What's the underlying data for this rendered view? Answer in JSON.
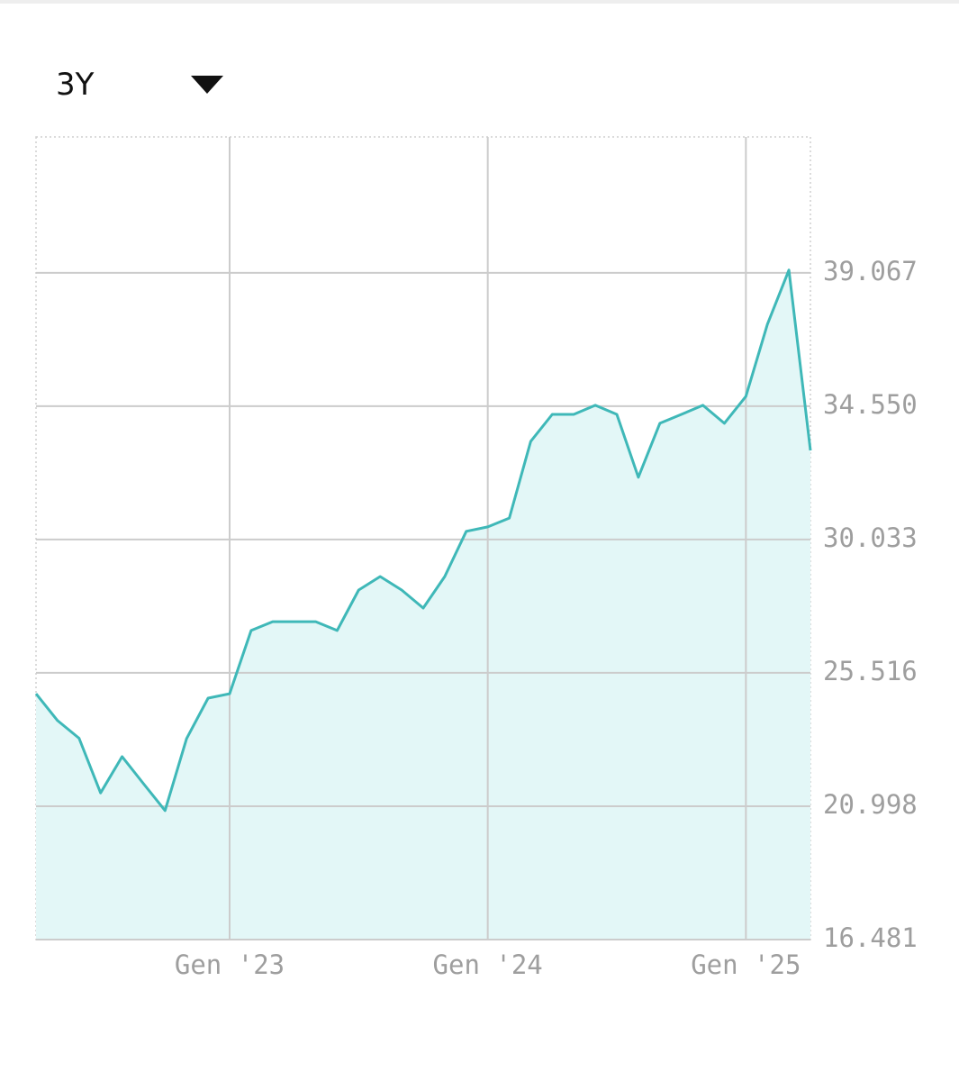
{
  "range_selector": "3Y",
  "chart_data": {
    "type": "area",
    "x": [
      "2022-04",
      "2022-05",
      "2022-06",
      "2022-07",
      "2022-08",
      "2022-09",
      "2022-10",
      "2022-11",
      "2022-12",
      "2023-01",
      "2023-02",
      "2023-03",
      "2023-04",
      "2023-05",
      "2023-06",
      "2023-07",
      "2023-08",
      "2023-09",
      "2023-10",
      "2023-11",
      "2023-12",
      "2024-01",
      "2024-02",
      "2024-03",
      "2024-04",
      "2024-05",
      "2024-06",
      "2024-07",
      "2024-08",
      "2024-09",
      "2024-10",
      "2024-11",
      "2024-12",
      "2025-01",
      "2025-02",
      "2025-03",
      "2025-04"
    ],
    "values": [
      24810,
      23900,
      23300,
      21450,
      22680,
      21760,
      20850,
      23290,
      24660,
      24810,
      26950,
      27250,
      27250,
      27250,
      26950,
      28320,
      28780,
      28320,
      27710,
      28780,
      30310,
      30460,
      30760,
      33360,
      34270,
      34270,
      34580,
      34270,
      32140,
      33970,
      34270,
      34580,
      33970,
      34880,
      37320,
      39160,
      33050
    ],
    "color": "#3fb8b8",
    "fill": "#e3f7f7",
    "xlim": [
      "2022-04",
      "2025-04"
    ],
    "xticks": [
      {
        "value": "2023-01",
        "label": "Gen '23"
      },
      {
        "value": "2024-01",
        "label": "Gen '24"
      },
      {
        "value": "2025-01",
        "label": "Gen '25"
      }
    ],
    "ylim": [
      16481,
      43670
    ],
    "yticks": [
      {
        "value": 16481,
        "label": "16.481"
      },
      {
        "value": 20998,
        "label": "20.998"
      },
      {
        "value": 25516,
        "label": "25.516"
      },
      {
        "value": 30033,
        "label": "30.033"
      },
      {
        "value": 34550,
        "label": "34.550"
      },
      {
        "value": 39067,
        "label": "39.067"
      }
    ],
    "grid": true
  }
}
